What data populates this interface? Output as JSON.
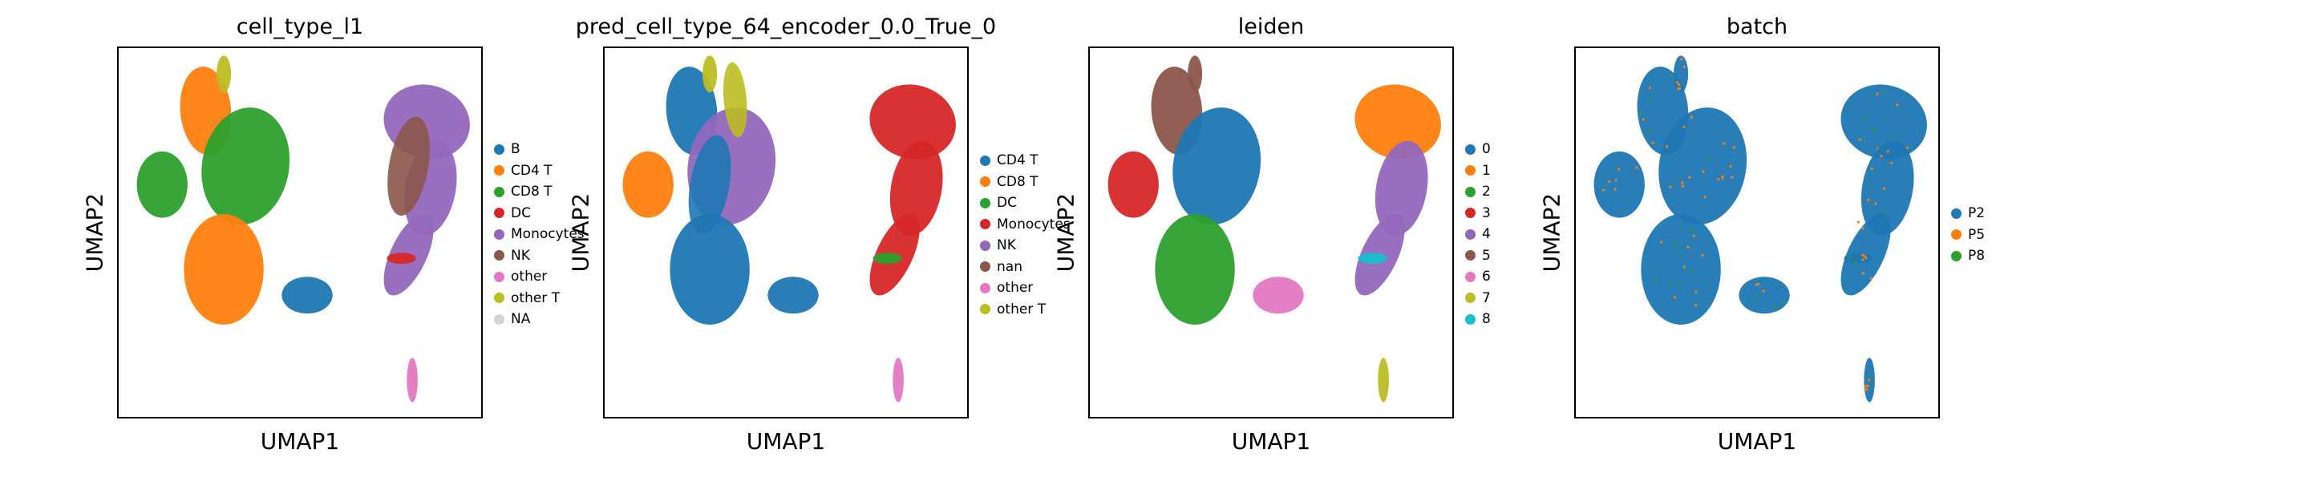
{
  "chart_data": [
    {
      "type": "scatter",
      "title": "cell_type_l1",
      "xlabel": "UMAP1",
      "ylabel": "UMAP2",
      "legend_placement": "right",
      "legend": [
        "B",
        "CD4 T",
        "CD8 T",
        "DC",
        "Monocytes",
        "NK",
        "other",
        "other T",
        "NA"
      ],
      "colors": [
        "#1f77b4",
        "#ff7f0e",
        "#2ca02c",
        "#d62728",
        "#9467bd",
        "#8c564b",
        "#e377c2",
        "#bcbd22",
        "#d3d3d3"
      ]
    },
    {
      "type": "scatter",
      "title": "pred_cell_type_64_encoder_0.0_True_0",
      "xlabel": "UMAP1",
      "ylabel": "UMAP2",
      "legend_placement": "right",
      "legend": [
        "CD4 T",
        "CD8 T",
        "DC",
        "Monocytes",
        "NK",
        "nan",
        "other",
        "other T"
      ],
      "colors": [
        "#1f77b4",
        "#ff7f0e",
        "#2ca02c",
        "#d62728",
        "#9467bd",
        "#8c564b",
        "#e377c2",
        "#bcbd22"
      ]
    },
    {
      "type": "scatter",
      "title": "leiden",
      "xlabel": "UMAP1",
      "ylabel": "UMAP2",
      "legend_placement": "right",
      "legend": [
        "0",
        "1",
        "2",
        "3",
        "4",
        "5",
        "6",
        "7",
        "8"
      ],
      "colors": [
        "#1f77b4",
        "#ff7f0e",
        "#2ca02c",
        "#d62728",
        "#9467bd",
        "#8c564b",
        "#e377c2",
        "#bcbd22",
        "#17becf"
      ]
    },
    {
      "type": "scatter",
      "title": "batch",
      "xlabel": "UMAP1",
      "ylabel": "UMAP2",
      "legend_placement": "right",
      "legend": [
        "P2",
        "P5",
        "P8"
      ],
      "colors": [
        "#1f77b4",
        "#ff7f0e",
        "#2ca02c"
      ]
    }
  ],
  "clusters": {
    "left": "left-blob",
    "upper_left": "upper-left-blob",
    "center": "central-mass",
    "lower": "lower-mass",
    "small_lower": "small-lower-blob",
    "right": "right-crescent",
    "right_tip": "crescent-tip",
    "far_bottom": "bottom-strip",
    "top_spike": "top-spike"
  }
}
